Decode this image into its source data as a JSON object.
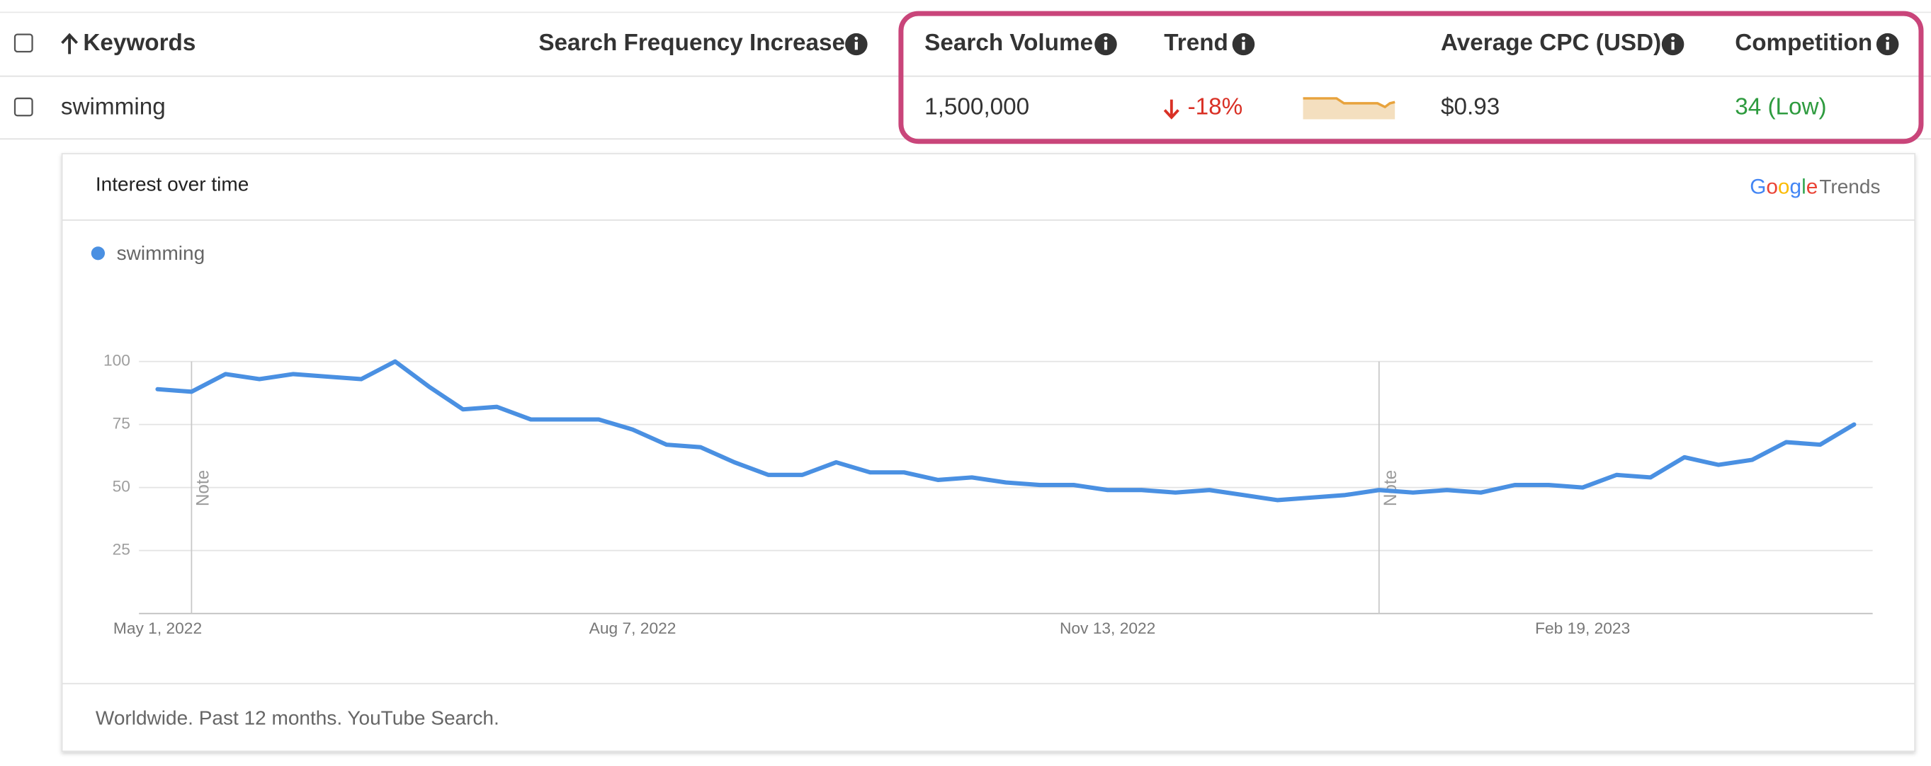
{
  "table": {
    "headers": [
      "Keywords",
      "Search Frequency Increase",
      "Search Volume",
      "Trend",
      "Average CPC (USD)",
      "Competition"
    ],
    "rows": [
      {
        "keyword": "swimming",
        "search_volume": "1,500,000",
        "trend": "-18%",
        "average_cpc": "$0.93",
        "competition": "34 (Low)"
      }
    ]
  },
  "chart_data": {
    "type": "line",
    "title": "Interest over time",
    "logo": {
      "brand": "Google",
      "product": "Trends"
    },
    "footer": "Worldwide. Past 12 months. YouTube Search.",
    "categories": [
      "May 1, 2022",
      null,
      null,
      null,
      null,
      null,
      null,
      null,
      null,
      null,
      null,
      null,
      null,
      null,
      "Aug 7, 2022",
      null,
      null,
      null,
      null,
      null,
      null,
      null,
      null,
      null,
      null,
      null,
      null,
      null,
      "Nov 13, 2022",
      null,
      null,
      null,
      null,
      null,
      null,
      null,
      null,
      null,
      null,
      null,
      null,
      null,
      "Feb 19, 2023",
      null,
      null,
      null,
      null,
      null,
      null,
      null,
      null
    ],
    "series": [
      {
        "name": "swimming",
        "color": "#4a90e2",
        "values": [
          89,
          88,
          95,
          93,
          95,
          94,
          93,
          100,
          90,
          81,
          82,
          77,
          77,
          77,
          73,
          67,
          66,
          60,
          55,
          55,
          60,
          56,
          56,
          53,
          54,
          52,
          51,
          51,
          49,
          49,
          48,
          49,
          47,
          45,
          46,
          47,
          49,
          48,
          49,
          48,
          51,
          51,
          50,
          55,
          54,
          62,
          59,
          61,
          68,
          67,
          75
        ]
      }
    ],
    "ylim": [
      0,
      100
    ],
    "yticks": [
      25,
      50,
      75,
      100
    ],
    "grid": true,
    "annotations": [
      {
        "text": "Note",
        "index": 1
      },
      {
        "text": "Note",
        "index": 36
      }
    ]
  }
}
